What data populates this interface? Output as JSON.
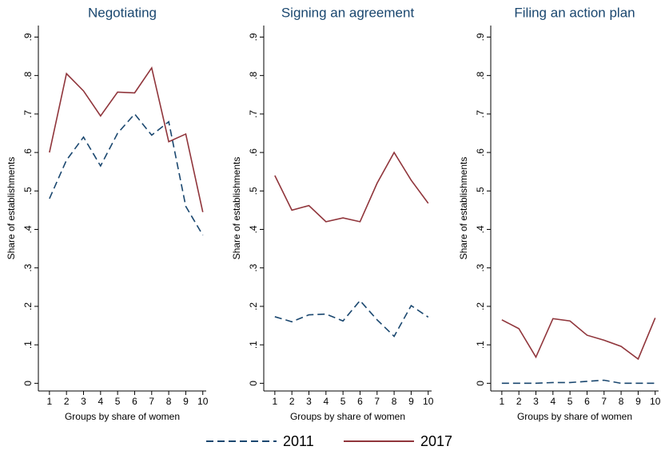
{
  "chart_data": [
    {
      "type": "line",
      "title": "Negotiating",
      "x_label": "Groups by share of women",
      "y_label": "Share of establishments",
      "x": [
        1,
        2,
        3,
        4,
        5,
        6,
        7,
        8,
        9,
        10
      ],
      "xlim": [
        0.35,
        10.2
      ],
      "xticks": [
        1,
        2,
        3,
        4,
        5,
        6,
        7,
        8,
        9,
        10
      ],
      "ylim": [
        -0.02,
        0.93
      ],
      "yticks": [
        0,
        {
          "value": 0.1,
          "label": ".1"
        },
        {
          "value": 0.2,
          "label": ".2"
        },
        {
          "value": 0.3,
          "label": ".3"
        },
        {
          "value": 0.4,
          "label": ".4"
        },
        {
          "value": 0.5,
          "label": ".5"
        },
        {
          "value": 0.6,
          "label": ".6"
        },
        {
          "value": 0.7,
          "label": ".7"
        },
        {
          "value": 0.8,
          "label": ".8"
        },
        {
          "value": 0.9,
          "label": ".9"
        }
      ],
      "series": [
        {
          "name": "2011",
          "color": "#1a476f",
          "dashed": true,
          "values": [
            0.48,
            0.58,
            0.64,
            0.565,
            0.65,
            0.7,
            0.645,
            0.68,
            0.46,
            0.385
          ]
        },
        {
          "name": "2017",
          "color": "#90353b",
          "dashed": false,
          "values": [
            0.6,
            0.805,
            0.76,
            0.695,
            0.757,
            0.755,
            0.82,
            0.628,
            0.648,
            0.445
          ]
        }
      ]
    },
    {
      "type": "line",
      "title": "Signing an agreement",
      "x_label": "Groups by share of women",
      "y_label": "Share of establishments",
      "x": [
        1,
        2,
        3,
        4,
        5,
        6,
        7,
        8,
        9,
        10
      ],
      "xlim": [
        0.35,
        10.2
      ],
      "xticks": [
        1,
        2,
        3,
        4,
        5,
        6,
        7,
        8,
        9,
        10
      ],
      "ylim": [
        -0.02,
        0.93
      ],
      "yticks": [
        0,
        {
          "value": 0.1,
          "label": ".1"
        },
        {
          "value": 0.2,
          "label": ".2"
        },
        {
          "value": 0.3,
          "label": ".3"
        },
        {
          "value": 0.4,
          "label": ".4"
        },
        {
          "value": 0.5,
          "label": ".5"
        },
        {
          "value": 0.6,
          "label": ".6"
        },
        {
          "value": 0.7,
          "label": ".7"
        },
        {
          "value": 0.8,
          "label": ".8"
        },
        {
          "value": 0.9,
          "label": ".9"
        }
      ],
      "series": [
        {
          "name": "2011",
          "color": "#1a476f",
          "dashed": true,
          "values": [
            0.173,
            0.16,
            0.178,
            0.18,
            0.162,
            0.215,
            0.165,
            0.122,
            0.202,
            0.172
          ]
        },
        {
          "name": "2017",
          "color": "#90353b",
          "dashed": false,
          "values": [
            0.54,
            0.45,
            0.462,
            0.42,
            0.43,
            0.42,
            0.52,
            0.6,
            0.528,
            0.468
          ]
        }
      ]
    },
    {
      "type": "line",
      "title": "Filing an action plan",
      "x_label": "Groups by share of women",
      "y_label": "Share of establishments",
      "x": [
        1,
        2,
        3,
        4,
        5,
        6,
        7,
        8,
        9,
        10
      ],
      "xlim": [
        0.35,
        10.2
      ],
      "xticks": [
        1,
        2,
        3,
        4,
        5,
        6,
        7,
        8,
        9,
        10
      ],
      "ylim": [
        -0.02,
        0.93
      ],
      "yticks": [
        0,
        {
          "value": 0.1,
          "label": ".1"
        },
        {
          "value": 0.2,
          "label": ".2"
        },
        {
          "value": 0.3,
          "label": ".3"
        },
        {
          "value": 0.4,
          "label": ".4"
        },
        {
          "value": 0.5,
          "label": ".5"
        },
        {
          "value": 0.6,
          "label": ".6"
        },
        {
          "value": 0.7,
          "label": ".7"
        },
        {
          "value": 0.8,
          "label": ".8"
        },
        {
          "value": 0.9,
          "label": ".9"
        }
      ],
      "series": [
        {
          "name": "2011",
          "color": "#1a476f",
          "dashed": true,
          "values": [
            0,
            0,
            0,
            0.002,
            0.002,
            0.005,
            0.008,
            0,
            0,
            0
          ]
        },
        {
          "name": "2017",
          "color": "#90353b",
          "dashed": false,
          "values": [
            0.165,
            0.142,
            0.068,
            0.168,
            0.162,
            0.125,
            0.112,
            0.096,
            0.063,
            0.17
          ]
        }
      ]
    }
  ]
}
